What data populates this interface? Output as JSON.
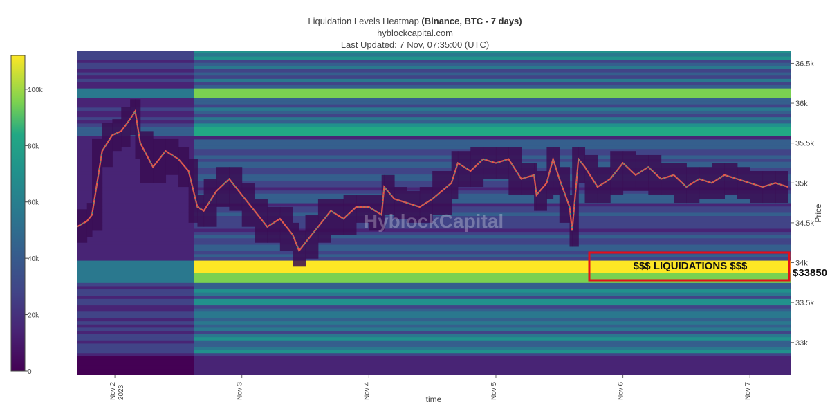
{
  "header": {
    "title_main": "Liquidation Levels Heatmap",
    "title_bold": "(Binance, BTC - 7 days)",
    "subtitle": "hyblockcapital.com",
    "updated": "Last Updated: 7 Nov, 07:35:00 (UTC)"
  },
  "watermark": "HyblockCapital",
  "annotation": {
    "box_label": "$$$ LIQUIDATIONS $$$",
    "price_label": "$33850",
    "box_color": "#e3101a"
  },
  "chart_data": {
    "type": "heatmap",
    "xlabel": "time",
    "ylabel": "Price",
    "x_ticks": [
      {
        "label": "Nov 2",
        "sub": "2023",
        "day": 1.3
      },
      {
        "label": "Nov 3",
        "sub": "",
        "day": 2.3
      },
      {
        "label": "Nov 4",
        "sub": "",
        "day": 3.3
      },
      {
        "label": "Nov 5",
        "sub": "",
        "day": 4.3
      },
      {
        "label": "Nov 6",
        "sub": "",
        "day": 5.3
      },
      {
        "label": "Nov 7",
        "sub": "",
        "day": 6.3
      }
    ],
    "x_range": [
      1.0,
      6.62
    ],
    "y_ticks": [
      {
        "label": "33k",
        "value": 33000
      },
      {
        "label": "33.5k",
        "value": 33500
      },
      {
        "label": "34k",
        "value": 34000
      },
      {
        "label": "34.5k",
        "value": 34500
      },
      {
        "label": "35k",
        "value": 35000
      },
      {
        "label": "35.5k",
        "value": 35500
      },
      {
        "label": "36k",
        "value": 36000
      },
      {
        "label": "36.5k",
        "value": 36500
      }
    ],
    "y_range": [
      32590,
      36660
    ],
    "colorscale": "viridis",
    "colorbar": {
      "range": [
        0,
        112000
      ],
      "ticks": [
        {
          "label": "0",
          "value": 0
        },
        {
          "label": "20k",
          "value": 20000
        },
        {
          "label": "40k",
          "value": 40000
        },
        {
          "label": "60k",
          "value": 60000
        },
        {
          "label": "80k",
          "value": 80000
        },
        {
          "label": "100k",
          "value": 100000
        }
      ]
    },
    "price_series_color": "#e8574a",
    "price_series_color_up": "#2a9d8f",
    "price_path": [
      [
        1.0,
        34450
      ],
      [
        1.08,
        34520
      ],
      [
        1.12,
        34600
      ],
      [
        1.2,
        35400
      ],
      [
        1.28,
        35600
      ],
      [
        1.35,
        35650
      ],
      [
        1.42,
        35800
      ],
      [
        1.46,
        35900
      ],
      [
        1.5,
        35500
      ],
      [
        1.6,
        35200
      ],
      [
        1.7,
        35400
      ],
      [
        1.8,
        35300
      ],
      [
        1.88,
        35150
      ],
      [
        1.95,
        34700
      ],
      [
        2.0,
        34650
      ],
      [
        2.1,
        34900
      ],
      [
        2.2,
        35050
      ],
      [
        2.3,
        34850
      ],
      [
        2.4,
        34650
      ],
      [
        2.5,
        34450
      ],
      [
        2.6,
        34550
      ],
      [
        2.7,
        34350
      ],
      [
        2.75,
        34150
      ],
      [
        2.8,
        34250
      ],
      [
        2.9,
        34450
      ],
      [
        3.0,
        34650
      ],
      [
        3.1,
        34550
      ],
      [
        3.2,
        34700
      ],
      [
        3.3,
        34700
      ],
      [
        3.4,
        34600
      ],
      [
        3.42,
        34950
      ],
      [
        3.5,
        34800
      ],
      [
        3.6,
        34750
      ],
      [
        3.7,
        34700
      ],
      [
        3.8,
        34800
      ],
      [
        3.95,
        35000
      ],
      [
        4.0,
        35250
      ],
      [
        4.1,
        35150
      ],
      [
        4.2,
        35300
      ],
      [
        4.3,
        35250
      ],
      [
        4.4,
        35300
      ],
      [
        4.5,
        35050
      ],
      [
        4.6,
        35100
      ],
      [
        4.62,
        34850
      ],
      [
        4.7,
        35000
      ],
      [
        4.75,
        35300
      ],
      [
        4.8,
        35050
      ],
      [
        4.88,
        34700
      ],
      [
        4.9,
        34400
      ],
      [
        4.95,
        35300
      ],
      [
        5.0,
        35200
      ],
      [
        5.1,
        34950
      ],
      [
        5.2,
        35050
      ],
      [
        5.3,
        35250
      ],
      [
        5.4,
        35100
      ],
      [
        5.5,
        35200
      ],
      [
        5.6,
        35050
      ],
      [
        5.7,
        35100
      ],
      [
        5.8,
        34950
      ],
      [
        5.9,
        35050
      ],
      [
        6.0,
        35000
      ],
      [
        6.1,
        35100
      ],
      [
        6.2,
        35050
      ],
      [
        6.3,
        35000
      ],
      [
        6.4,
        34950
      ],
      [
        6.5,
        35000
      ],
      [
        6.6,
        34950
      ]
    ],
    "high_density_bands": [
      {
        "price_low": 33870,
        "price_high": 34000,
        "intensity": "very high"
      },
      {
        "price_low": 33780,
        "price_high": 33850,
        "intensity": "high"
      },
      {
        "price_low": 36100,
        "price_high": 36180,
        "intensity": "high"
      },
      {
        "price_low": 35600,
        "price_high": 35700,
        "intensity": "medium"
      }
    ]
  }
}
